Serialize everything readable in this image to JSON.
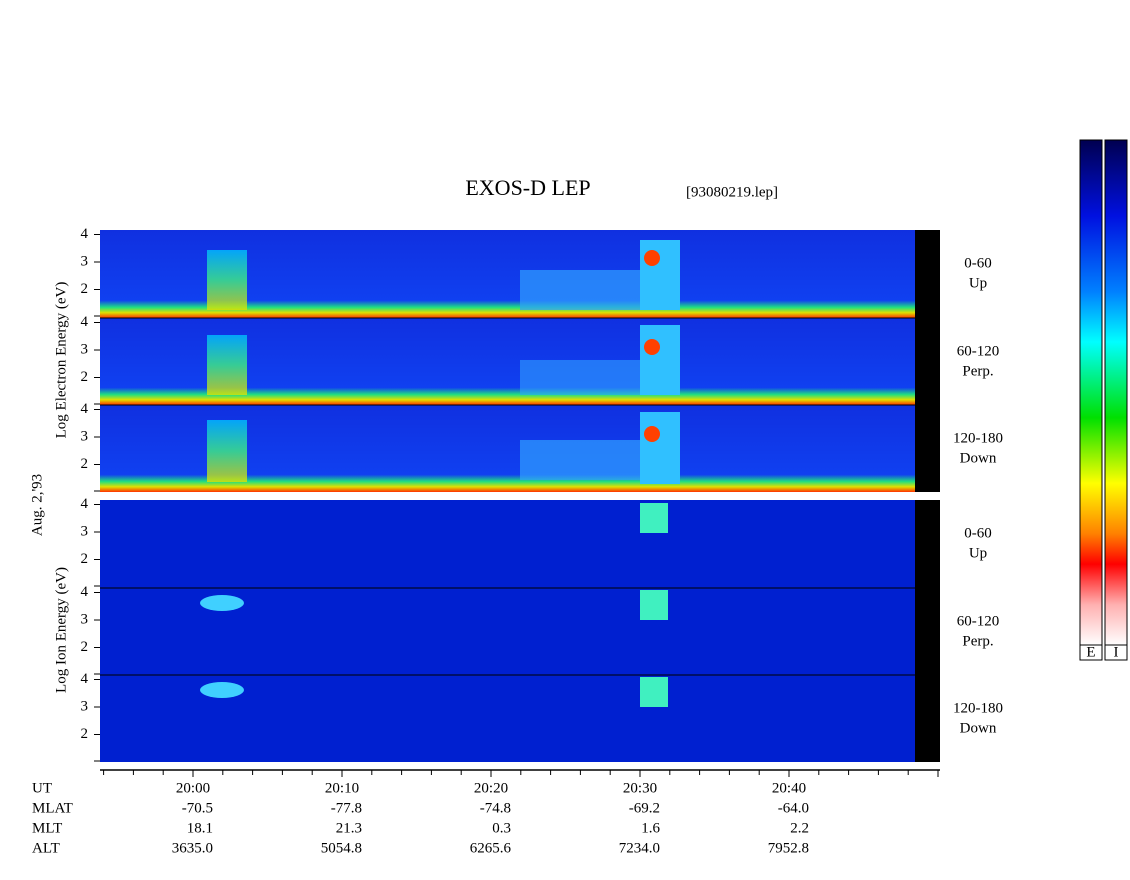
{
  "title": "EXOS-D LEP",
  "file": "[93080219.lep]",
  "date": "Aug. 2,'93",
  "electron": {
    "label": "Log  Electron  Energy (eV)",
    "panels": [
      {
        "range": "0-60",
        "dir": "Up"
      },
      {
        "range": "60-120",
        "dir": "Perp."
      },
      {
        "range": "120-180",
        "dir": "Down"
      }
    ]
  },
  "ion": {
    "label": "Log  Ion  Energy (eV)",
    "panels": [
      {
        "range": "0-60",
        "dir": "Up"
      },
      {
        "range": "60-120",
        "dir": "Perp."
      },
      {
        "range": "120-180",
        "dir": "Down"
      }
    ]
  },
  "yticks": [
    2,
    3,
    4
  ],
  "x_axis": {
    "rows": [
      {
        "name": "UT",
        "values": [
          "20:00",
          "20:10",
          "20:20",
          "20:30",
          "20:40"
        ]
      },
      {
        "name": "MLAT",
        "values": [
          "-70.5",
          "-77.8",
          "-74.8",
          "-69.2",
          "-64.0"
        ]
      },
      {
        "name": "MLT",
        "values": [
          "18.1",
          "21.3",
          "0.3",
          "1.6",
          "2.2"
        ]
      },
      {
        "name": "ALT",
        "values": [
          "3635.0",
          "5054.8",
          "6265.6",
          "7234.0",
          "7952.8"
        ]
      }
    ]
  },
  "colorbars": [
    "E",
    "I"
  ]
}
